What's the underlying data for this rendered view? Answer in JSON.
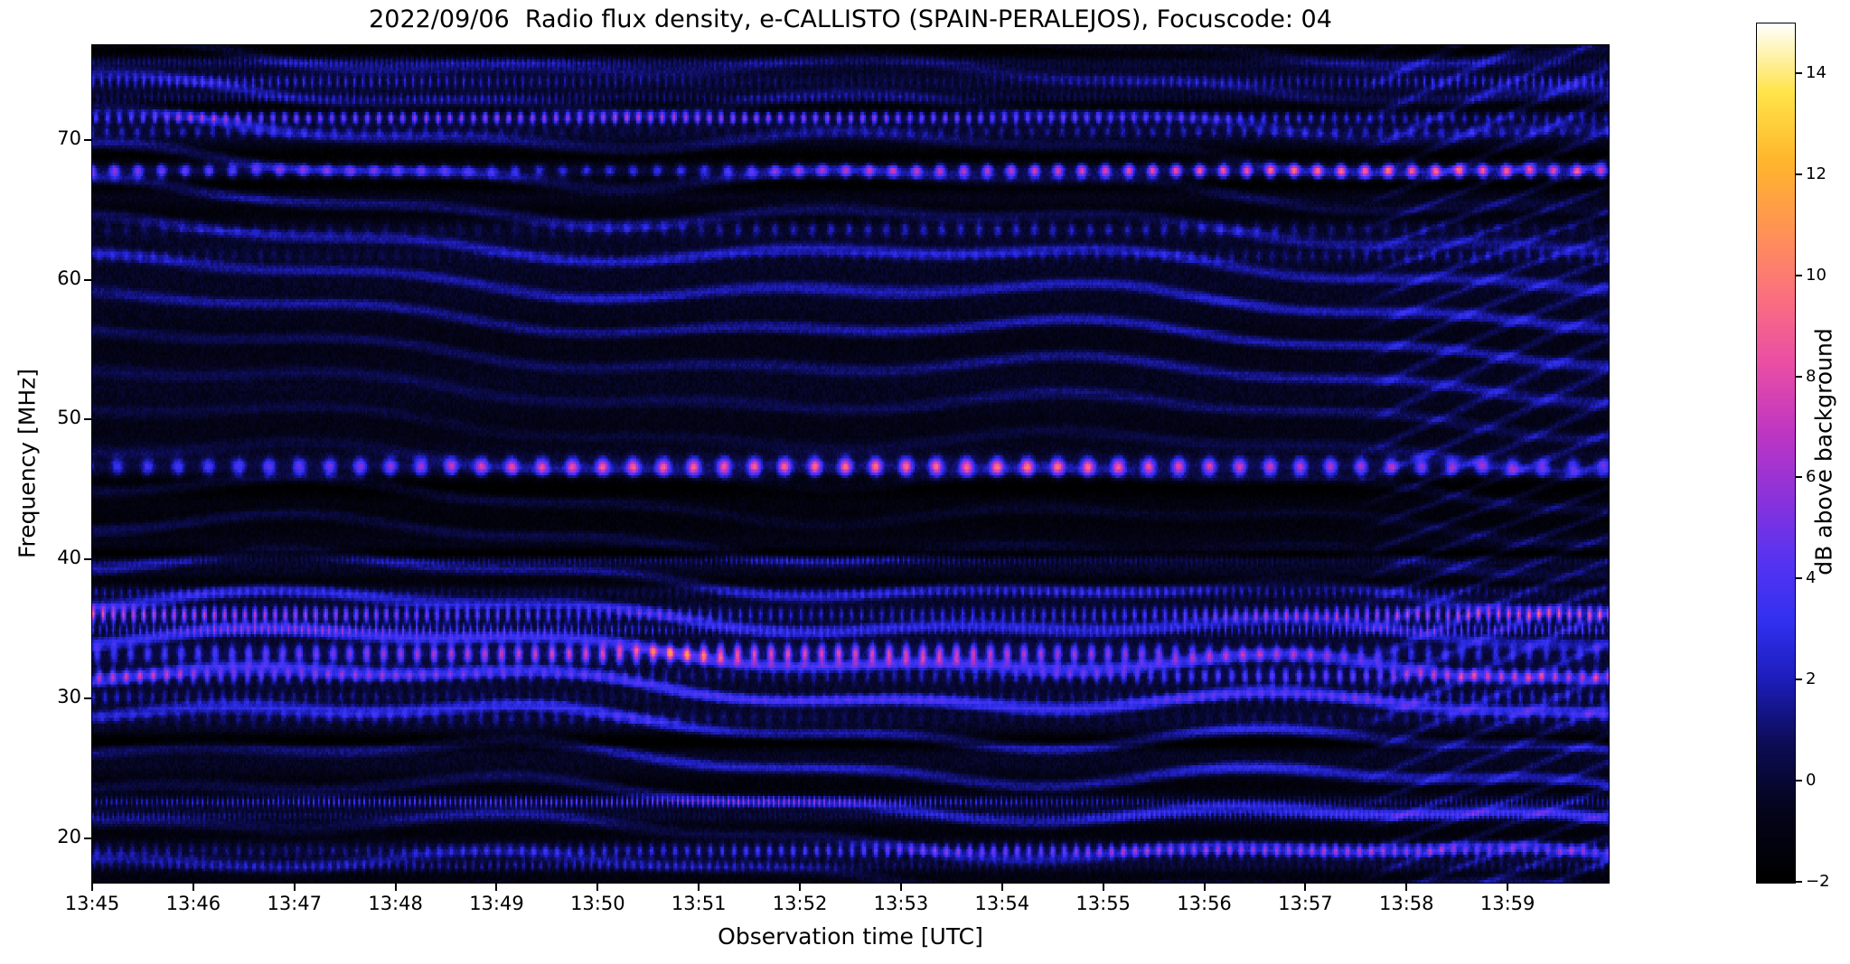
{
  "chart_data": {
    "type": "heatmap",
    "title": "2022/09/06  Radio flux density, e-CALLISTO (SPAIN-PERALEJOS), Focuscode: 04",
    "xlabel": "Observation time [UTC]",
    "ylabel": "Frequency [MHz]",
    "x_ticks": [
      "13:45",
      "13:46",
      "13:47",
      "13:48",
      "13:49",
      "13:50",
      "13:51",
      "13:52",
      "13:53",
      "13:54",
      "13:55",
      "13:56",
      "13:57",
      "13:58",
      "13:59"
    ],
    "x_minutes_span": 15,
    "time_span_seconds": 900,
    "freq_range_mhz": [
      16.8,
      76.8
    ],
    "y_ticks_mhz": [
      20,
      30,
      40,
      50,
      60,
      70
    ],
    "grid": false,
    "legend": "none",
    "colorbar": {
      "label": "dB above background",
      "range_db": [
        -2,
        15
      ],
      "ticks": [
        {
          "label": "14",
          "value": 14
        },
        {
          "label": "12",
          "value": 12
        },
        {
          "label": "10",
          "value": 10
        },
        {
          "label": "8",
          "value": 8
        },
        {
          "label": "6",
          "value": 6
        },
        {
          "label": "4",
          "value": 4
        },
        {
          "label": "2",
          "value": 2
        },
        {
          "label": "0",
          "value": 0
        },
        {
          "label": "−2",
          "value": -2
        }
      ],
      "colormap_stops": [
        [
          0.0,
          "#000000"
        ],
        [
          0.08,
          "#04041a"
        ],
        [
          0.16,
          "#0c0c55"
        ],
        [
          0.235,
          "#1d1dbb"
        ],
        [
          0.3,
          "#3030ee"
        ],
        [
          0.37,
          "#5433f2"
        ],
        [
          0.44,
          "#8632dd"
        ],
        [
          0.52,
          "#bd35c4"
        ],
        [
          0.6,
          "#e84da6"
        ],
        [
          0.68,
          "#fb6f80"
        ],
        [
          0.76,
          "#ff9355"
        ],
        [
          0.84,
          "#ffb62c"
        ],
        [
          0.92,
          "#ffe44a"
        ],
        [
          1.0,
          "#ffffff"
        ]
      ]
    },
    "base_db": -0.4,
    "noise_db": 0.9,
    "ripple": {
      "spatial_freq": 2.4,
      "drift": 0.003,
      "envelope": [
        [
          16.8,
          1.5
        ],
        [
          20,
          1.9
        ],
        [
          27,
          2.1
        ],
        [
          31,
          2.3
        ],
        [
          38,
          1.6
        ],
        [
          41,
          1.15
        ],
        [
          45,
          1.7
        ],
        [
          48,
          1.05
        ],
        [
          58,
          1.75
        ],
        [
          64,
          1.3
        ],
        [
          67,
          1.45
        ],
        [
          72,
          1.6
        ],
        [
          76.8,
          1.6
        ]
      ]
    },
    "fringes": {
      "start_s": 745,
      "spatial_freq": 3.2,
      "drift": 0.16,
      "amp": 1.5
    },
    "bands": [
      {
        "f": 75.6,
        "amp": 2.2,
        "w": 0.3,
        "dash": 3,
        "phase": 1.0
      },
      {
        "f": 74.2,
        "amp": 2.6,
        "w": 0.35,
        "dash": 5,
        "phase": 2.0
      },
      {
        "f": 73.0,
        "amp": 1.8,
        "w": 0.3,
        "dash": 4,
        "phase": 0.5
      },
      {
        "f": 71.6,
        "amp": 5.5,
        "w": 0.3,
        "dash": 7,
        "phase": 0.0
      },
      {
        "f": 70.6,
        "amp": 2.2,
        "w": 0.3,
        "dash": 9,
        "phase": 3.0
      },
      {
        "f": 67.8,
        "amp": 7.5,
        "w": 0.35,
        "dash": 14,
        "phase": 1.2
      },
      {
        "f": 63.6,
        "amp": 2.4,
        "w": 0.4,
        "dash": 11,
        "phase": 2.2
      },
      {
        "f": 61.7,
        "amp": 1.6,
        "w": 0.35,
        "dash": 8,
        "phase": 0.7
      },
      {
        "f": 46.6,
        "amp": 8.0,
        "w": 0.45,
        "dash": 18,
        "phase": 0.4
      },
      {
        "f": 39.9,
        "amp": 2.0,
        "w": 0.25,
        "dash": 3,
        "phase": 1.8
      },
      {
        "f": 37.6,
        "amp": 2.2,
        "w": 0.3,
        "dash": 5,
        "phase": 2.6
      },
      {
        "f": 36.0,
        "amp": 6.5,
        "w": 0.4,
        "dash": 6,
        "phase": 1.1
      },
      {
        "f": 34.9,
        "amp": 3.5,
        "w": 0.3,
        "dash": 4,
        "phase": 2.9
      },
      {
        "f": 33.2,
        "amp": 7.0,
        "w": 0.5,
        "dash": 10,
        "phase": 0.9
      },
      {
        "f": 31.6,
        "amp": 4.5,
        "w": 0.4,
        "dash": 8,
        "phase": 1.6
      },
      {
        "f": 30.1,
        "amp": 2.5,
        "w": 0.4,
        "dash": 7,
        "phase": 0.2
      },
      {
        "f": 28.6,
        "amp": 1.8,
        "w": 0.4,
        "dash": 9,
        "phase": 2.4
      },
      {
        "f": 22.6,
        "amp": 4.0,
        "w": 0.25,
        "dash": 3,
        "phase": 1.4
      },
      {
        "f": 21.6,
        "amp": 2.0,
        "w": 0.25,
        "dash": 3,
        "phase": 2.1
      },
      {
        "f": 19.1,
        "amp": 4.5,
        "w": 0.35,
        "dash": 7,
        "phase": 0.8
      },
      {
        "f": 18.0,
        "amp": 2.0,
        "w": 0.3,
        "dash": 5,
        "phase": 1.9
      },
      {
        "f": 76.4,
        "amp": -1.5,
        "w": 0.4,
        "dash": 0,
        "phase": 0
      },
      {
        "f": 72.4,
        "amp": -1.2,
        "w": 0.35,
        "dash": 0,
        "phase": 0
      },
      {
        "f": 68.9,
        "amp": -1.6,
        "w": 0.45,
        "dash": 0,
        "phase": 0
      },
      {
        "f": 66.8,
        "amp": -1.6,
        "w": 0.4,
        "dash": 0,
        "phase": 0
      },
      {
        "f": 64.8,
        "amp": -1.0,
        "w": 0.6,
        "dash": 0,
        "phase": 0
      },
      {
        "f": 55.5,
        "amp": -0.5,
        "w": 1.5,
        "dash": 0,
        "phase": 0
      },
      {
        "f": 49.5,
        "amp": -0.5,
        "w": 1.2,
        "dash": 0,
        "phase": 0
      },
      {
        "f": 45.2,
        "amp": -1.6,
        "w": 0.6,
        "dash": 0,
        "phase": 0
      },
      {
        "f": 42.8,
        "amp": -1.0,
        "w": 1.2,
        "dash": 0,
        "phase": 0
      },
      {
        "f": 40.4,
        "amp": -1.8,
        "w": 0.25,
        "dash": 0,
        "phase": 0
      },
      {
        "f": 38.4,
        "amp": -1.0,
        "w": 0.3,
        "dash": 0,
        "phase": 0
      },
      {
        "f": 26.9,
        "amp": -2.2,
        "w": 0.35,
        "dash": 0,
        "phase": 0
      },
      {
        "f": 23.8,
        "amp": -1.0,
        "w": 0.6,
        "dash": 0,
        "phase": 0
      },
      {
        "f": 20.4,
        "amp": -1.0,
        "w": 0.5,
        "dash": 0,
        "phase": 0
      },
      {
        "f": 17.2,
        "amp": -0.8,
        "w": 0.4,
        "dash": 0,
        "phase": 0
      }
    ]
  }
}
